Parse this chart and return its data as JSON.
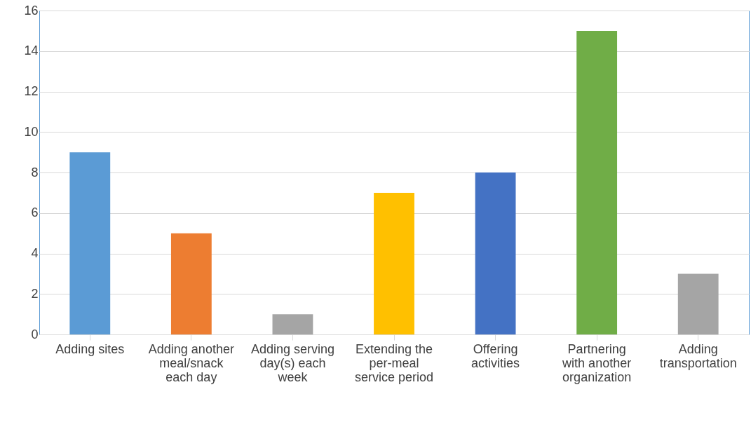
{
  "chart_data": {
    "type": "bar",
    "categories": [
      "Adding sites",
      "Adding another meal/snack each day",
      "Adding serving day(s) each week",
      "Extending the per-meal service period",
      "Offering activities",
      "Partnering with another organization",
      "Adding transportation"
    ],
    "values": [
      9,
      5,
      1,
      7,
      8,
      15,
      3
    ],
    "colors": [
      "#5b9bd5",
      "#ed7d31",
      "#a5a5a5",
      "#ffc000",
      "#4472c4",
      "#70ad47",
      "#a5a5a5"
    ],
    "ylim": [
      0,
      16
    ],
    "yticks": [
      0,
      2,
      4,
      6,
      8,
      10,
      12,
      14,
      16
    ],
    "grid": "y"
  }
}
